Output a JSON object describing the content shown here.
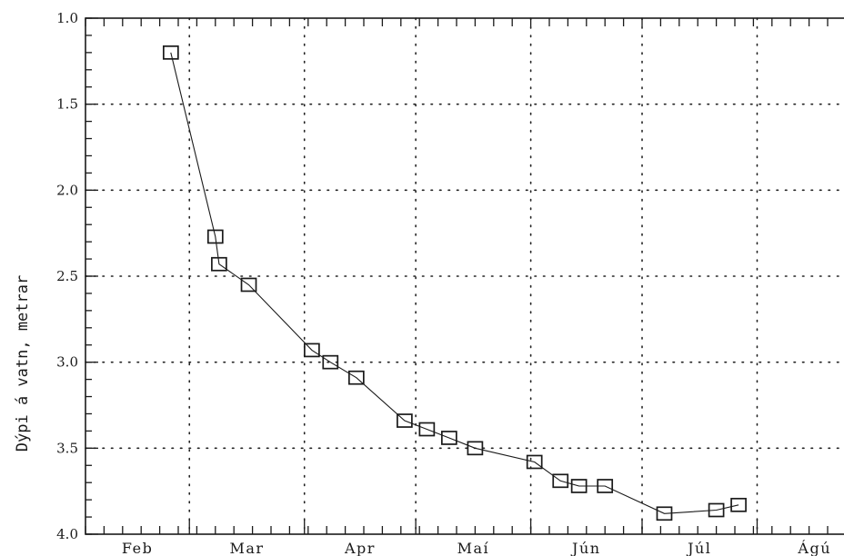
{
  "chart_data": {
    "type": "line",
    "title": "",
    "xlabel": "",
    "ylabel": "Dýpi á vatn, metrar",
    "y_axis_inverted": true,
    "ylim": [
      1.0,
      4.0
    ],
    "yticks": [
      "1.0",
      "1.5",
      "2.0",
      "2.5",
      "3.0",
      "3.5",
      "4.0"
    ],
    "x_unit": "days from 1 February",
    "xlim": [
      0,
      212
    ],
    "month_labels": [
      "Feb",
      "Mar",
      "Apr",
      "Maí",
      "Jún",
      "Júl",
      "Ágú"
    ],
    "grid": true,
    "legend": "none",
    "series": [
      {
        "marker": "square",
        "x": [
          23,
          35,
          36,
          44,
          61,
          66,
          73,
          86,
          92,
          98,
          105,
          121,
          128,
          133,
          140,
          156,
          170,
          176
        ],
        "y": [
          1.2,
          2.27,
          2.43,
          2.55,
          2.93,
          3.0,
          3.09,
          3.34,
          3.39,
          3.44,
          3.5,
          3.58,
          3.69,
          3.72,
          3.72,
          3.88,
          3.86,
          3.83
        ]
      }
    ]
  }
}
